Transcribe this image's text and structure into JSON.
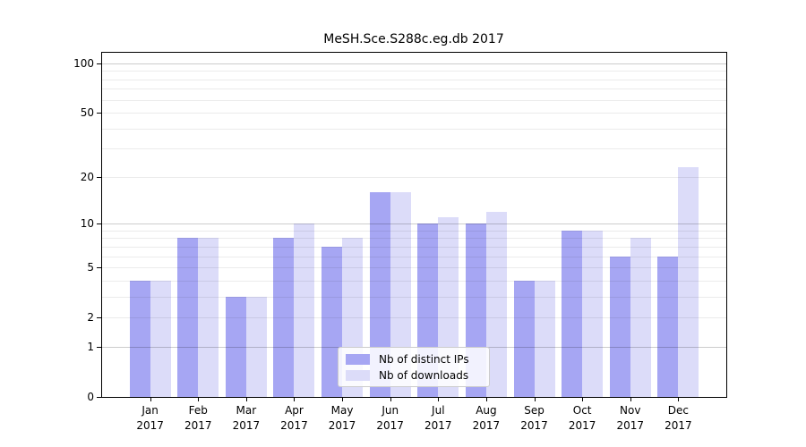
{
  "title": "MeSH.Sce.S288c.eg.db 2017",
  "chart_data": {
    "type": "bar",
    "title": "MeSH.Sce.S288c.eg.db 2017",
    "categories": [
      "Jan 2017",
      "Feb 2017",
      "Mar 2017",
      "Apr 2017",
      "May 2017",
      "Jun 2017",
      "Jul 2017",
      "Aug 2017",
      "Sep 2017",
      "Oct 2017",
      "Nov 2017",
      "Dec 2017"
    ],
    "series": [
      {
        "name": "Nb of distinct IPs",
        "color": "#a6a6f3",
        "values": [
          4,
          8,
          3,
          8,
          7,
          16,
          10,
          10,
          4,
          9,
          6,
          6
        ]
      },
      {
        "name": "Nb of downloads",
        "color": "#dcdcf9",
        "values": [
          4,
          8,
          3,
          10,
          8,
          16,
          11,
          12,
          4,
          9,
          8,
          23
        ]
      }
    ],
    "xlabel": "",
    "ylabel": "",
    "y_scale": "log1p",
    "y_tick_labels": [
      "0",
      "1",
      "2",
      "5",
      "10",
      "20",
      "50",
      "100"
    ],
    "y_ticks": [
      0,
      1,
      2,
      5,
      10,
      20,
      50,
      100
    ],
    "y_major_gridlines": [
      1,
      10,
      100
    ],
    "y_minor_gridlines": [
      2,
      3,
      4,
      5,
      6,
      7,
      8,
      9,
      20,
      30,
      40,
      50,
      60,
      70,
      80,
      90
    ],
    "ylim": [
      0,
      115
    ],
    "grid": true,
    "legend_position": "lower center",
    "axis_color": "#000000",
    "major_grid_color": "#c7c7c7",
    "minor_grid_color": "#ebebeb"
  }
}
